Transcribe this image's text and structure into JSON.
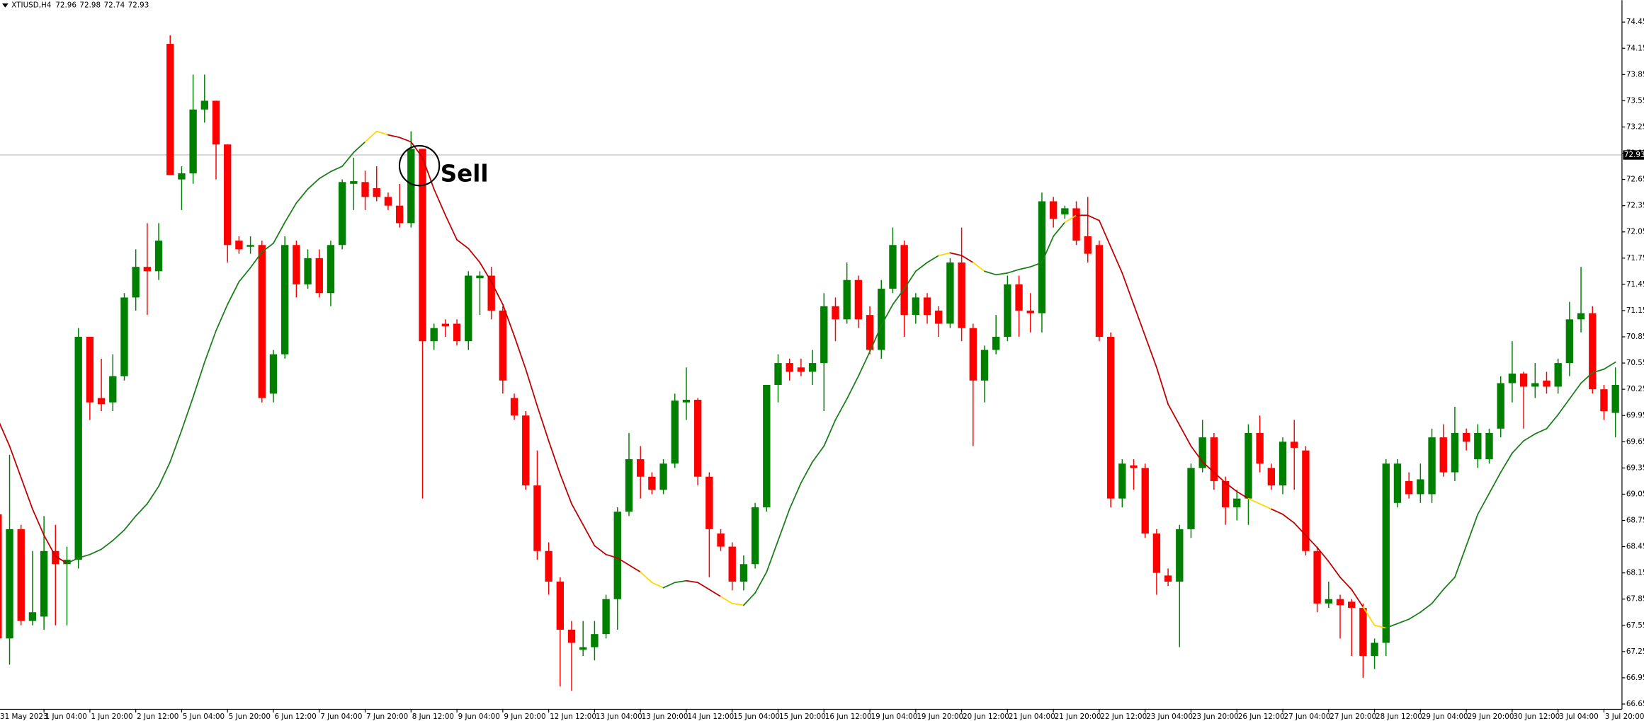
{
  "chart_data": {
    "type": "candlestick",
    "title": "XTIUSD,H4",
    "header_values": [
      72.96,
      72.98,
      72.74,
      72.93
    ],
    "annotation": "Sell",
    "last_price": 72.93,
    "last_price_color": "#c0c0c0",
    "up_color": "#008000",
    "down_color": "#ff0000",
    "grid": false,
    "ylim": [
      66.59,
      74.7
    ],
    "yticks": [
      74.45,
      74.15,
      73.85,
      73.55,
      73.25,
      72.95,
      72.65,
      72.35,
      72.05,
      71.75,
      71.45,
      71.15,
      70.85,
      70.55,
      70.25,
      69.95,
      69.65,
      69.35,
      69.05,
      68.75,
      68.45,
      68.15,
      67.85,
      67.55,
      67.25,
      66.95,
      66.65
    ],
    "categories": [
      "31 May 2023",
      null,
      null,
      null,
      "1 Jun 04:00",
      null,
      null,
      null,
      "1 Jun 20:00",
      null,
      null,
      null,
      "2 Jun 12:00",
      null,
      null,
      null,
      "5 Jun 04:00",
      null,
      null,
      null,
      "5 Jun 20:00",
      null,
      null,
      null,
      "6 Jun 12:00",
      null,
      null,
      null,
      "7 Jun 04:00",
      null,
      null,
      null,
      "7 Jun 20:00",
      null,
      null,
      null,
      "8 Jun 12:00",
      null,
      null,
      null,
      "9 Jun 04:00",
      null,
      null,
      null,
      "9 Jun 20:00",
      null,
      null,
      null,
      "12 Jun 12:00",
      null,
      null,
      null,
      "13 Jun 04:00",
      null,
      null,
      null,
      "13 Jun 20:00",
      null,
      null,
      null,
      "14 Jun 12:00",
      null,
      null,
      null,
      "15 Jun 04:00",
      null,
      null,
      null,
      "15 Jun 20:00",
      null,
      null,
      null,
      "16 Jun 12:00",
      null,
      null,
      null,
      "19 Jun 04:00",
      null,
      null,
      null,
      "19 Jun 20:00",
      null,
      null,
      null,
      "20 Jun 12:00",
      null,
      null,
      null,
      "21 Jun 04:00",
      null,
      null,
      null,
      "21 Jun 20:00",
      null,
      null,
      null,
      "22 Jun 12:00",
      null,
      null,
      null,
      "23 Jun 04:00",
      null,
      null,
      null,
      "23 Jun 20:00",
      null,
      null,
      null,
      "26 Jun 12:00",
      null,
      null,
      null,
      "27 Jun 04:00",
      null,
      null,
      null,
      "27 Jun 20:00",
      null,
      null,
      null,
      "28 Jun 12:00",
      null,
      null,
      null,
      "29 Jun 04:00",
      null,
      null,
      null,
      "29 Jun 20:00",
      null,
      null,
      null,
      "30 Jun 12:00",
      null,
      null,
      null,
      "3 Jul 04:00",
      null,
      null,
      null,
      "3 Jul 20:00",
      null
    ],
    "open": [
      68.82,
      67.4,
      68.65,
      67.6,
      67.65,
      68.4,
      68.25,
      68.3,
      70.85,
      70.15,
      70.1,
      70.4,
      71.3,
      71.65,
      71.6,
      74.2,
      72.65,
      72.72,
      73.45,
      73.55,
      73.05,
      71.95,
      71.88,
      71.9,
      70.2,
      70.65,
      71.9,
      71.45,
      71.75,
      71.35,
      71.9,
      72.6,
      72.62,
      72.55,
      72.45,
      72.35,
      72.15,
      73.0,
      70.8,
      71.0,
      71.0,
      70.8,
      71.52,
      71.55,
      71.15,
      70.15,
      69.95,
      69.15,
      68.4,
      68.05,
      67.5,
      67.27,
      67.3,
      67.45,
      67.85,
      68.85,
      69.45,
      69.25,
      69.1,
      69.4,
      70.1,
      70.13,
      69.25,
      68.6,
      68.45,
      68.05,
      68.25,
      68.9,
      70.3,
      70.55,
      70.5,
      70.45,
      70.55,
      71.2,
      71.05,
      71.5,
      71.1,
      70.7,
      71.4,
      71.9,
      71.1,
      71.3,
      71.15,
      71.0,
      71.7,
      70.95,
      70.35,
      70.7,
      70.85,
      71.45,
      71.15,
      71.12,
      72.4,
      72.25,
      72.32,
      72.0,
      71.9,
      70.85,
      69.0,
      69.38,
      69.35,
      68.6,
      68.12,
      68.05,
      68.65,
      69.35,
      69.7,
      69.2,
      68.9,
      69.0,
      69.75,
      69.35,
      69.15,
      69.65,
      69.55,
      68.4,
      67.8,
      67.85,
      67.82,
      67.75,
      67.2,
      67.35,
      68.95,
      69.2,
      69.05,
      69.05,
      69.7,
      69.3,
      69.75,
      69.45,
      69.45,
      69.8,
      70.32,
      70.43,
      70.28,
      70.35,
      70.28,
      70.55,
      71.05,
      71.12,
      70.25,
      69.98
    ],
    "high": [
      68.95,
      69.5,
      68.7,
      68.4,
      68.8,
      68.7,
      68.45,
      70.95,
      70.85,
      70.6,
      70.65,
      71.35,
      71.85,
      72.15,
      72.15,
      74.3,
      72.8,
      73.85,
      73.85,
      73.55,
      73.05,
      72.0,
      72.0,
      71.95,
      70.7,
      72.0,
      71.95,
      71.85,
      71.85,
      71.95,
      72.65,
      72.9,
      72.75,
      72.8,
      72.5,
      72.6,
      73.2,
      73.0,
      71.0,
      71.05,
      71.05,
      71.6,
      71.6,
      71.65,
      71.2,
      70.2,
      70.0,
      69.55,
      68.5,
      68.1,
      67.6,
      67.6,
      67.6,
      67.9,
      68.9,
      69.75,
      69.6,
      69.3,
      69.45,
      70.2,
      70.5,
      70.15,
      69.3,
      68.65,
      68.5,
      68.35,
      68.95,
      70.3,
      70.65,
      70.6,
      70.6,
      70.7,
      71.35,
      71.3,
      71.7,
      71.55,
      71.2,
      71.5,
      72.1,
      71.95,
      71.35,
      71.35,
      71.2,
      71.75,
      72.1,
      71.0,
      70.75,
      71.1,
      71.55,
      71.55,
      71.35,
      72.5,
      72.45,
      72.35,
      72.4,
      72.45,
      71.95,
      70.9,
      69.45,
      69.45,
      69.4,
      68.65,
      68.2,
      68.7,
      69.4,
      69.9,
      69.75,
      69.25,
      69.1,
      69.85,
      69.95,
      69.4,
      69.7,
      69.9,
      69.6,
      68.45,
      68.05,
      67.9,
      67.85,
      67.8,
      67.4,
      69.45,
      69.45,
      69.3,
      69.4,
      69.8,
      69.85,
      70.05,
      69.8,
      69.85,
      69.8,
      70.4,
      70.8,
      70.45,
      70.55,
      70.45,
      70.6,
      71.25,
      71.65,
      71.2,
      70.3,
      70.5
    ],
    "low": [
      67.3,
      67.1,
      67.55,
      67.55,
      67.5,
      67.55,
      67.55,
      68.2,
      69.9,
      70.0,
      70.0,
      70.35,
      71.15,
      71.1,
      71.5,
      72.7,
      72.3,
      72.6,
      73.3,
      72.65,
      71.7,
      71.8,
      71.8,
      70.1,
      70.1,
      70.6,
      71.3,
      71.4,
      71.3,
      71.2,
      71.85,
      72.3,
      72.3,
      72.4,
      72.3,
      72.1,
      72.1,
      69.0,
      70.7,
      70.85,
      70.75,
      70.7,
      71.1,
      71.05,
      70.2,
      69.9,
      69.1,
      68.3,
      67.9,
      66.85,
      66.8,
      67.2,
      67.15,
      67.4,
      67.5,
      68.8,
      69.0,
      69.05,
      69.05,
      69.35,
      69.9,
      69.15,
      68.1,
      68.4,
      67.95,
      67.95,
      68.2,
      68.85,
      70.1,
      70.35,
      70.4,
      70.3,
      70.0,
      70.8,
      71.0,
      70.95,
      70.65,
      70.6,
      71.35,
      70.85,
      71.0,
      71.0,
      70.85,
      70.95,
      70.8,
      69.6,
      70.1,
      70.65,
      70.8,
      70.85,
      70.9,
      70.9,
      72.1,
      72.2,
      71.9,
      71.7,
      70.8,
      68.9,
      68.9,
      69.1,
      68.55,
      67.9,
      68.0,
      67.3,
      68.55,
      69.3,
      69.1,
      68.7,
      68.75,
      68.7,
      69.3,
      69.1,
      69.05,
      69.1,
      68.35,
      67.7,
      67.75,
      67.4,
      67.2,
      66.95,
      67.05,
      67.2,
      68.9,
      69.0,
      68.95,
      68.95,
      69.25,
      69.2,
      69.55,
      69.35,
      69.4,
      69.7,
      70.1,
      69.8,
      70.15,
      70.2,
      70.2,
      70.4,
      70.9,
      70.2,
      69.9,
      69.7
    ],
    "close": [
      67.4,
      68.65,
      67.6,
      67.7,
      68.4,
      68.25,
      68.3,
      70.85,
      70.1,
      70.08,
      70.4,
      71.3,
      71.65,
      71.6,
      71.95,
      72.7,
      72.72,
      73.45,
      73.55,
      73.05,
      71.9,
      71.85,
      71.9,
      70.15,
      70.65,
      71.9,
      71.45,
      71.75,
      71.35,
      71.9,
      72.62,
      72.63,
      72.45,
      72.45,
      72.35,
      72.15,
      73.0,
      70.8,
      70.95,
      70.97,
      70.8,
      71.55,
      71.55,
      71.15,
      70.35,
      69.95,
      69.15,
      68.4,
      68.05,
      67.5,
      67.35,
      67.3,
      67.45,
      67.85,
      68.85,
      69.45,
      69.25,
      69.1,
      69.4,
      70.12,
      70.13,
      69.25,
      68.65,
      68.45,
      68.05,
      68.25,
      68.9,
      70.3,
      70.55,
      70.45,
      70.45,
      70.55,
      71.2,
      71.05,
      71.5,
      71.05,
      70.7,
      71.4,
      71.9,
      71.1,
      71.3,
      71.1,
      71.0,
      71.7,
      70.95,
      70.35,
      70.7,
      70.85,
      71.45,
      71.15,
      71.12,
      72.4,
      72.2,
      72.32,
      71.95,
      71.8,
      70.85,
      69.0,
      69.4,
      69.35,
      68.6,
      68.15,
      68.05,
      68.65,
      69.35,
      69.7,
      69.2,
      68.9,
      69.0,
      69.75,
      69.4,
      69.15,
      69.65,
      69.58,
      68.4,
      67.8,
      67.85,
      67.78,
      67.75,
      67.2,
      67.35,
      69.4,
      69.4,
      69.05,
      69.22,
      69.7,
      69.3,
      69.75,
      69.65,
      69.75,
      69.75,
      70.32,
      70.43,
      70.28,
      70.32,
      70.28,
      70.55,
      71.05,
      71.12,
      70.25,
      70.0,
      70.3
    ],
    "indicator": {
      "values": [
        69.9,
        69.6,
        69.24,
        68.88,
        68.58,
        68.34,
        68.26,
        68.32,
        68.36,
        68.42,
        68.52,
        68.64,
        68.8,
        68.94,
        69.14,
        69.42,
        69.78,
        70.16,
        70.56,
        70.92,
        71.22,
        71.48,
        71.64,
        71.82,
        71.92,
        72.16,
        72.38,
        72.54,
        72.66,
        72.74,
        72.8,
        72.96,
        73.08,
        73.2,
        73.16,
        73.13,
        73.08,
        72.9,
        72.54,
        72.24,
        71.96,
        71.86,
        71.7,
        71.48,
        71.22,
        70.86,
        70.48,
        70.06,
        69.66,
        69.28,
        68.94,
        68.7,
        68.46,
        68.36,
        68.32,
        68.24,
        68.16,
        68.04,
        67.98,
        68.04,
        68.06,
        68.04,
        67.96,
        67.88,
        67.8,
        67.78,
        67.92,
        68.16,
        68.52,
        68.88,
        69.18,
        69.42,
        69.6,
        69.9,
        70.14,
        70.4,
        70.68,
        70.98,
        71.22,
        71.4,
        71.6,
        71.7,
        71.78,
        71.81,
        71.78,
        71.7,
        71.6,
        71.56,
        71.58,
        71.62,
        71.65,
        71.7,
        72.0,
        72.16,
        72.24,
        72.24,
        72.18,
        71.88,
        71.58,
        71.22,
        70.86,
        70.5,
        70.08,
        69.84,
        69.6,
        69.42,
        69.3,
        69.18,
        69.08,
        69.0,
        68.94,
        68.88,
        68.82,
        68.72,
        68.58,
        68.44,
        68.28,
        68.1,
        67.96,
        67.76,
        67.55,
        67.52,
        67.57,
        67.62,
        67.7,
        67.8,
        67.96,
        68.1,
        68.46,
        68.82,
        69.06,
        69.3,
        69.52,
        69.66,
        69.74,
        69.8,
        69.96,
        70.14,
        70.32,
        70.44,
        70.48,
        70.56
      ],
      "colors": [
        "#c00000",
        "#c00000",
        "#c00000",
        "#c00000",
        "#c00000",
        "#c00000",
        "#c00000",
        "#1a7f1a",
        "#1a7f1a",
        "#1a7f1a",
        "#1a7f1a",
        "#1a7f1a",
        "#1a7f1a",
        "#1a7f1a",
        "#1a7f1a",
        "#1a7f1a",
        "#1a7f1a",
        "#1a7f1a",
        "#1a7f1a",
        "#1a7f1a",
        "#1a7f1a",
        "#1a7f1a",
        "#1a7f1a",
        "#1a7f1a",
        "#1a7f1a",
        "#1a7f1a",
        "#1a7f1a",
        "#1a7f1a",
        "#1a7f1a",
        "#1a7f1a",
        "#1a7f1a",
        "#1a7f1a",
        "#1a7f1a",
        "#ffd700",
        "#ffd700",
        "#c00000",
        "#c00000",
        "#c00000",
        "#c00000",
        "#c00000",
        "#c00000",
        "#c00000",
        "#c00000",
        "#c00000",
        "#c00000",
        "#c00000",
        "#c00000",
        "#c00000",
        "#c00000",
        "#c00000",
        "#c00000",
        "#c00000",
        "#c00000",
        "#c00000",
        "#c00000",
        "#c00000",
        "#c00000",
        "#ffd700",
        "#ffd700",
        "#1a7f1a",
        "#1a7f1a",
        "#c00000",
        "#c00000",
        "#c00000",
        "#ffd700",
        "#ffd700",
        "#1a7f1a",
        "#1a7f1a",
        "#1a7f1a",
        "#1a7f1a",
        "#1a7f1a",
        "#1a7f1a",
        "#1a7f1a",
        "#1a7f1a",
        "#1a7f1a",
        "#1a7f1a",
        "#1a7f1a",
        "#1a7f1a",
        "#1a7f1a",
        "#1a7f1a",
        "#1a7f1a",
        "#1a7f1a",
        "#1a7f1a",
        "#ffd700",
        "#c00000",
        "#c00000",
        "#ffd700",
        "#1a7f1a",
        "#1a7f1a",
        "#1a7f1a",
        "#1a7f1a",
        "#1a7f1a",
        "#1a7f1a",
        "#1a7f1a",
        "#ffd700",
        "#c00000",
        "#c00000",
        "#c00000",
        "#c00000",
        "#c00000",
        "#c00000",
        "#c00000",
        "#c00000",
        "#c00000",
        "#c00000",
        "#c00000",
        "#c00000",
        "#c00000",
        "#c00000",
        "#c00000",
        "#ffd700",
        "#ffd700",
        "#c00000",
        "#c00000",
        "#c00000",
        "#c00000",
        "#c00000",
        "#c00000",
        "#c00000",
        "#c00000",
        "#ffd700",
        "#ffd700",
        "#1a7f1a",
        "#1a7f1a",
        "#1a7f1a",
        "#1a7f1a",
        "#1a7f1a",
        "#1a7f1a",
        "#1a7f1a",
        "#1a7f1a",
        "#1a7f1a",
        "#1a7f1a",
        "#1a7f1a",
        "#1a7f1a",
        "#1a7f1a",
        "#1a7f1a",
        "#1a7f1a",
        "#1a7f1a",
        "#1a7f1a",
        "#1a7f1a",
        "#1a7f1a",
        "#1a7f1a"
      ]
    }
  }
}
